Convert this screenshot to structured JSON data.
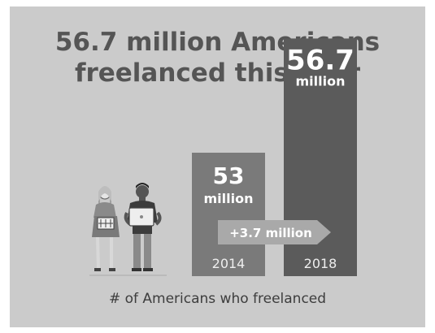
{
  "title_lines": [
    "56.7 million Americans",
    "freelanced this year"
  ],
  "chart_data": {
    "type": "bar",
    "categories": [
      "2014",
      "2018"
    ],
    "values": [
      53,
      56.7
    ],
    "value_labels": [
      {
        "number": "53",
        "unit": "million"
      },
      {
        "number": "56.7",
        "unit": "million"
      }
    ],
    "change_label": "+3.7 million",
    "xlabel": "# of Americans who freelanced",
    "colors": {
      "bar_2014": "#7a7a7a",
      "bar_2018": "#5b5b5b",
      "arrow": "#a9a9a9",
      "background": "#cbcbcb",
      "title": "#555555"
    }
  },
  "illustration": {
    "description_icons": [
      "woman-with-laptop-icon",
      "man-with-laptop-icon"
    ]
  }
}
